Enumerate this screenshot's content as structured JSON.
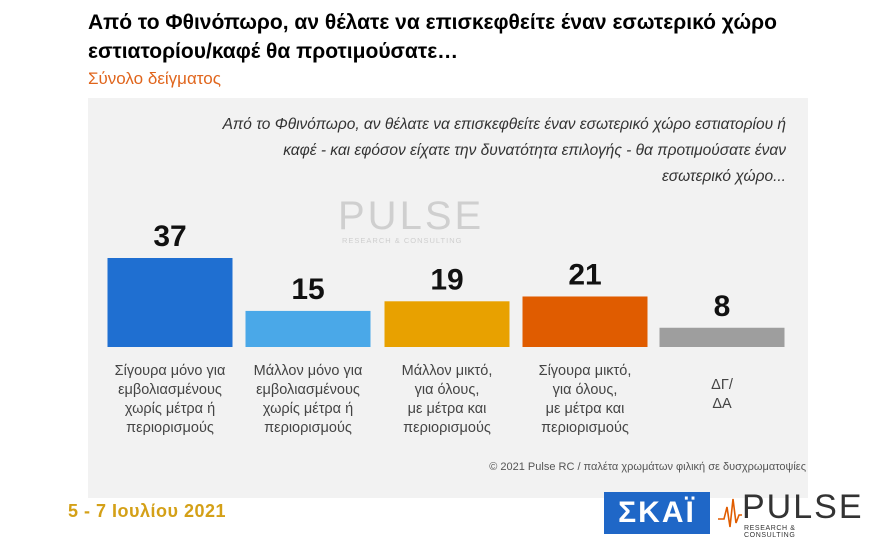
{
  "header": {
    "title": "Από το Φθινόπωρο, αν θέλατε να επισκεφθείτε έναν εσωτερικό χώρο εστιατορίου/καφέ θα προτιμούσατε…",
    "subtitle": "Σύνολο δείγματος"
  },
  "question_note": "Από το Φθινόπωρο, αν θέλατε να επισκεφθείτε έναν εσωτερικό χώρο εστιατορίου ή καφέ - και εφόσον είχατε την δυνατότητα επιλογής - θα προτιμούσατε έναν εσωτερικό χώρο...",
  "watermark": {
    "brand": "PULSE",
    "tagline": "RESEARCH & CONSULTING"
  },
  "chart_data": {
    "type": "bar",
    "categories": [
      [
        "Σίγουρα μόνο για",
        "εμβολιασμένους",
        "χωρίς μέτρα ή",
        "περιορισμούς"
      ],
      [
        "Μάλλον μόνο για",
        "εμβολιασμένους",
        "χωρίς μέτρα ή",
        "περιορισμούς"
      ],
      [
        "Μάλλον μικτό,",
        "για όλους,",
        "με μέτρα και",
        "περιορισμούς"
      ],
      [
        "Σίγουρα μικτό,",
        "για όλους,",
        "με μέτρα και",
        "περιορισμούς"
      ],
      [
        "ΔΓ/",
        "ΔΑ"
      ]
    ],
    "values": [
      37,
      15,
      19,
      21,
      8
    ],
    "colors": [
      "#1f6fd1",
      "#4aa8e8",
      "#e8a100",
      "#e05c00",
      "#9e9e9e"
    ],
    "ylim": [
      0,
      40
    ]
  },
  "footer": {
    "copyright": "© 2021 Pulse RC  /  παλέτα χρωμάτων φιλική σε δυσχρωματοψίες",
    "date": "5 - 7  Ιουλίου  2021",
    "logo_left": "ΣΚΑΪ",
    "logo_right": "PULSE",
    "logo_right_sub": "RESEARCH & CONSULTING"
  }
}
